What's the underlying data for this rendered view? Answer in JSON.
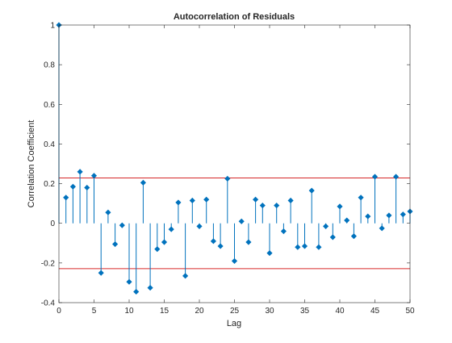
{
  "chart_data": {
    "type": "stem",
    "title": "Autocorrelation of Residuals",
    "xlabel": "Lag",
    "ylabel": "Correlation Coefficient",
    "xlim": [
      0,
      50
    ],
    "ylim": [
      -0.4,
      1
    ],
    "xticks": [
      0,
      5,
      10,
      15,
      20,
      25,
      30,
      35,
      40,
      45,
      50
    ],
    "yticks": [
      -0.4,
      -0.2,
      0,
      0.2,
      0.4,
      0.6,
      0.8,
      1
    ],
    "ytick_labels": [
      "-0.4",
      "-0.2",
      "0",
      "0.2",
      "0.4",
      "0.6",
      "0.8",
      "1"
    ],
    "grid": false,
    "colors": {
      "stem": "#0072bd",
      "bounds": "#d62728",
      "axis": "#262626"
    },
    "bounds": [
      0.2287,
      -0.2287
    ],
    "x": [
      0,
      1,
      2,
      3,
      4,
      5,
      6,
      7,
      8,
      9,
      10,
      11,
      12,
      13,
      14,
      15,
      16,
      17,
      18,
      19,
      20,
      21,
      22,
      23,
      24,
      25,
      26,
      27,
      28,
      29,
      30,
      31,
      32,
      33,
      34,
      35,
      36,
      37,
      38,
      39,
      40,
      41,
      42,
      43,
      44,
      45,
      46,
      47,
      48,
      49,
      50
    ],
    "values": [
      1.0,
      0.13,
      0.185,
      0.26,
      0.18,
      0.24,
      -0.25,
      0.055,
      -0.105,
      -0.01,
      -0.295,
      -0.345,
      0.205,
      -0.325,
      -0.13,
      -0.095,
      -0.03,
      0.105,
      -0.265,
      0.115,
      -0.015,
      0.12,
      -0.09,
      -0.115,
      0.225,
      -0.19,
      0.01,
      -0.095,
      0.12,
      0.09,
      -0.15,
      0.09,
      -0.04,
      0.115,
      -0.12,
      -0.115,
      0.165,
      -0.12,
      -0.015,
      -0.07,
      0.085,
      0.015,
      -0.065,
      0.13,
      0.035,
      0.235,
      -0.025,
      0.04,
      0.235,
      0.045,
      0.06
    ]
  }
}
